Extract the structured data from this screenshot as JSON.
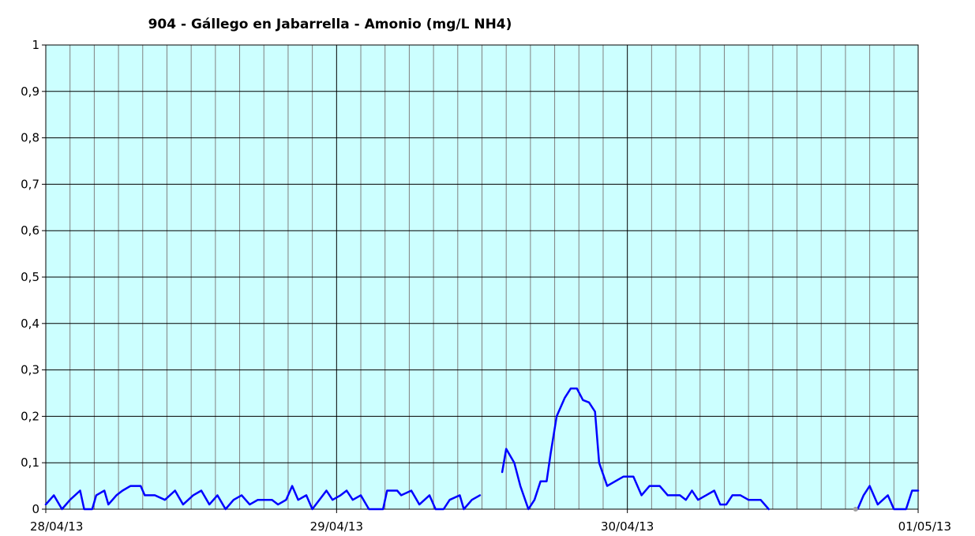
{
  "chart_data": {
    "type": "line",
    "title": "904 - Gállego en Jabarrella - Amonio (mg/L NH4)",
    "xlabel": "",
    "ylabel": "",
    "x_tick_labels": [
      "28/04/13",
      "29/04/13",
      "30/04/13",
      "01/05/13"
    ],
    "y_tick_labels": [
      "0",
      "0,1",
      "0,2",
      "0,3",
      "0,4",
      "0,5",
      "0,6",
      "0,7",
      "0,8",
      "0,9",
      "1"
    ],
    "y_ticks": [
      0,
      0.1,
      0.2,
      0.3,
      0.4,
      0.5,
      0.6,
      0.7,
      0.8,
      0.9,
      1
    ],
    "ylim": [
      0,
      1
    ],
    "xlim": [
      "28/04/13 00:00",
      "01/05/13 00:00"
    ],
    "grid": {
      "major_hours": 24,
      "minor_hours": 2
    },
    "legend": "none",
    "colors": {
      "plot_background": "#ccffff",
      "line": "#0000ff",
      "grid_minor": "#808080",
      "grid_major": "#000000"
    },
    "series": [
      {
        "points": [
          [
            "28/04/13 00:00",
            0.01
          ],
          [
            "28/04/13 00:40",
            0.03
          ],
          [
            "28/04/13 01:20",
            0.0
          ],
          [
            "28/04/13 02:00",
            0.02
          ],
          [
            "28/04/13 02:50",
            0.04
          ],
          [
            "28/04/13 03:10",
            0.0
          ],
          [
            "28/04/13 03:50",
            0.0
          ],
          [
            "28/04/13 04:10",
            0.03
          ],
          [
            "28/04/13 04:50",
            0.04
          ],
          [
            "28/04/13 05:10",
            0.01
          ],
          [
            "28/04/13 05:50",
            0.03
          ],
          [
            "28/04/13 06:20",
            0.04
          ],
          [
            "28/04/13 07:00",
            0.05
          ],
          [
            "28/04/13 07:50",
            0.05
          ],
          [
            "28/04/13 08:10",
            0.03
          ],
          [
            "28/04/13 09:00",
            0.03
          ],
          [
            "28/04/13 09:50",
            0.02
          ],
          [
            "28/04/13 10:40",
            0.04
          ],
          [
            "28/04/13 11:20",
            0.01
          ],
          [
            "28/04/13 12:10",
            0.03
          ],
          [
            "28/04/13 12:50",
            0.04
          ],
          [
            "28/04/13 13:30",
            0.01
          ],
          [
            "28/04/13 14:10",
            0.03
          ],
          [
            "28/04/13 14:50",
            0.0
          ],
          [
            "28/04/13 15:30",
            0.02
          ],
          [
            "28/04/13 16:10",
            0.03
          ],
          [
            "28/04/13 16:50",
            0.01
          ],
          [
            "28/04/13 17:30",
            0.02
          ],
          [
            "28/04/13 18:40",
            0.02
          ],
          [
            "28/04/13 19:10",
            0.01
          ],
          [
            "28/04/13 19:50",
            0.02
          ],
          [
            "28/04/13 20:20",
            0.05
          ],
          [
            "28/04/13 20:50",
            0.02
          ],
          [
            "28/04/13 21:30",
            0.03
          ],
          [
            "28/04/13 22:00",
            0.0
          ],
          [
            "28/04/13 23:10",
            0.04
          ],
          [
            "28/04/13 23:40",
            0.02
          ],
          [
            "29/04/13 00:20",
            0.03
          ],
          [
            "29/04/13 00:50",
            0.04
          ],
          [
            "29/04/13 01:20",
            0.02
          ],
          [
            "29/04/13 02:00",
            0.03
          ],
          [
            "29/04/13 02:40",
            0.0
          ],
          [
            "29/04/13 03:50",
            0.0
          ],
          [
            "29/04/13 04:10",
            0.04
          ],
          [
            "29/04/13 05:00",
            0.04
          ],
          [
            "29/04/13 05:20",
            0.03
          ],
          [
            "29/04/13 06:10",
            0.04
          ],
          [
            "29/04/13 06:50",
            0.01
          ],
          [
            "29/04/13 07:40",
            0.03
          ],
          [
            "29/04/13 08:10",
            0.0
          ],
          [
            "29/04/13 08:50",
            0.0
          ],
          [
            "29/04/13 09:20",
            0.02
          ],
          [
            "29/04/13 10:10",
            0.03
          ],
          [
            "29/04/13 10:30",
            0.0
          ],
          [
            "29/04/13 11:10",
            0.02
          ],
          [
            "29/04/13 11:50",
            0.03
          ],
          null,
          [
            "29/04/13 13:40",
            0.08
          ],
          [
            "29/04/13 14:00",
            0.13
          ],
          [
            "29/04/13 14:40",
            0.1
          ],
          [
            "29/04/13 15:10",
            0.05
          ],
          [
            "29/04/13 15:50",
            0.0
          ],
          [
            "29/04/13 16:20",
            0.02
          ],
          [
            "29/04/13 16:50",
            0.06
          ],
          [
            "29/04/13 17:20",
            0.06
          ],
          [
            "29/04/13 17:40",
            0.12
          ],
          [
            "29/04/13 18:10",
            0.2
          ],
          [
            "29/04/13 18:50",
            0.24
          ],
          [
            "29/04/13 19:20",
            0.26
          ],
          [
            "29/04/13 19:50",
            0.26
          ],
          [
            "29/04/13 20:20",
            0.235
          ],
          [
            "29/04/13 20:50",
            0.23
          ],
          [
            "29/04/13 21:20",
            0.21
          ],
          [
            "29/04/13 21:40",
            0.1
          ],
          [
            "29/04/13 22:20",
            0.05
          ],
          [
            "29/04/13 23:00",
            0.06
          ],
          [
            "29/04/13 23:40",
            0.07
          ],
          [
            "30/04/13 00:30",
            0.07
          ],
          [
            "30/04/13 01:10",
            0.03
          ],
          [
            "30/04/13 01:50",
            0.05
          ],
          [
            "30/04/13 02:40",
            0.05
          ],
          [
            "30/04/13 03:20",
            0.03
          ],
          [
            "30/04/13 04:20",
            0.03
          ],
          [
            "30/04/13 04:50",
            0.02
          ],
          [
            "30/04/13 05:20",
            0.04
          ],
          [
            "30/04/13 05:50",
            0.02
          ],
          [
            "30/04/13 06:30",
            0.03
          ],
          [
            "30/04/13 07:10",
            0.04
          ],
          [
            "30/04/13 07:40",
            0.01
          ],
          [
            "30/04/13 08:10",
            0.01
          ],
          [
            "30/04/13 08:40",
            0.03
          ],
          [
            "30/04/13 09:20",
            0.03
          ],
          [
            "30/04/13 10:00",
            0.02
          ],
          [
            "30/04/13 11:00",
            0.02
          ],
          [
            "30/04/13 11:40",
            0.0
          ],
          null,
          [
            "30/04/13 19:00",
            0.0
          ],
          [
            "30/04/13 19:30",
            0.03
          ],
          [
            "30/04/13 20:00",
            0.05
          ],
          [
            "30/04/13 20:40",
            0.01
          ],
          [
            "30/04/13 21:30",
            0.03
          ],
          [
            "30/04/13 22:00",
            0.0
          ],
          [
            "30/04/13 23:00",
            0.0
          ],
          [
            "30/04/13 23:30",
            0.04
          ],
          [
            "01/05/13 00:00",
            0.04
          ]
        ]
      }
    ],
    "markers": [
      [
        "30/04/13 18:50",
        0.0
      ]
    ]
  }
}
